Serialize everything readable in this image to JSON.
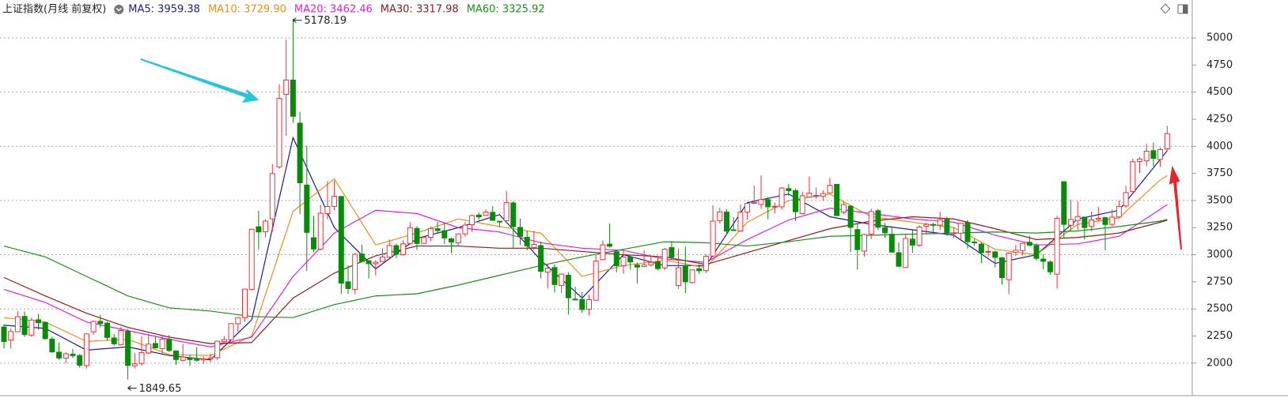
{
  "chart_data": {
    "type": "candlestick",
    "title": "上证指数(月线 前复权)",
    "ylim": [
      1700,
      5350
    ],
    "yticks": [
      2000,
      2250,
      2500,
      2750,
      3000,
      3250,
      3500,
      3750,
      4000,
      4250,
      4500,
      4750,
      5000
    ],
    "grid_every": 2,
    "up_color": "#e8323c",
    "down_color": "#0a8a0a",
    "max_label": "5178.19",
    "min_label": "1849.65",
    "ohlc": [
      [
        2333,
        2359,
        2134,
        2199
      ],
      [
        2212,
        2319,
        2132,
        2292
      ],
      [
        2290,
        2478,
        2287,
        2428
      ],
      [
        2431,
        2476,
        2242,
        2263
      ],
      [
        2259,
        2420,
        2243,
        2397
      ],
      [
        2400,
        2453,
        2308,
        2373
      ],
      [
        2376,
        2379,
        2218,
        2226
      ],
      [
        2222,
        2244,
        2097,
        2103
      ],
      [
        2101,
        2190,
        2031,
        2047
      ],
      [
        2046,
        2102,
        1999,
        2086
      ],
      [
        2082,
        2131,
        2047,
        2069
      ],
      [
        2070,
        2084,
        1959,
        1980
      ],
      [
        1977,
        2276,
        1950,
        2269
      ],
      [
        2289,
        2393,
        2262,
        2385
      ],
      [
        2385,
        2445,
        2330,
        2366
      ],
      [
        2369,
        2380,
        2206,
        2237
      ],
      [
        2232,
        2269,
        2161,
        2178
      ],
      [
        2171,
        2335,
        2166,
        2301
      ],
      [
        2293,
        2316,
        1849.65,
        1979
      ],
      [
        1975,
        2092,
        1951,
        1994
      ],
      [
        1997,
        2248,
        1977,
        2098
      ],
      [
        2094,
        2270,
        2081,
        2175
      ],
      [
        2181,
        2243,
        2137,
        2141
      ],
      [
        2134,
        2258,
        2089,
        2221
      ],
      [
        2220,
        2260,
        2102,
        2116
      ],
      [
        2112,
        2113,
        1985,
        2033
      ],
      [
        2026,
        2177,
        2016,
        2056
      ],
      [
        2050,
        2078,
        1975,
        2033
      ],
      [
        2034,
        2146,
        2015,
        2026
      ],
      [
        2029,
        2062,
        1991,
        2039
      ],
      [
        2038,
        2087,
        2010,
        2048
      ],
      [
        2050,
        2205,
        2030,
        2202
      ],
      [
        2198,
        2249,
        2174,
        2217
      ],
      [
        2217,
        2367,
        2210,
        2364
      ],
      [
        2363,
        2425,
        2290,
        2420
      ],
      [
        2420,
        2685,
        2380,
        2683
      ],
      [
        2680,
        3240,
        2672,
        3235
      ],
      [
        3258,
        3406,
        3049,
        3210
      ],
      [
        3212,
        3329,
        3161,
        3310
      ],
      [
        3331,
        3835,
        3213,
        3748
      ],
      [
        3810,
        4572,
        3793,
        4442
      ],
      [
        4480,
        4985,
        4099,
        4612
      ],
      [
        4611,
        5178.19,
        4217,
        4277
      ],
      [
        4214,
        4318,
        3374,
        3664
      ],
      [
        3643,
        4006,
        2850,
        3206
      ],
      [
        3157,
        3358,
        3022,
        3053
      ],
      [
        3052,
        3462,
        3039,
        3383
      ],
      [
        3380,
        3678,
        3328,
        3445
      ],
      [
        3445,
        3685,
        3410,
        3539
      ],
      [
        3537,
        3539,
        2638,
        2738
      ],
      [
        2750,
        2903,
        2638,
        2688
      ],
      [
        2679,
        3019,
        2638,
        3004
      ],
      [
        3006,
        3093,
        2928,
        2938
      ],
      [
        2945,
        2948,
        2781,
        2917
      ],
      [
        2917,
        2951,
        2808,
        2930
      ],
      [
        2938,
        3060,
        2932,
        2979
      ],
      [
        2977,
        3141,
        2963,
        3085
      ],
      [
        3084,
        3103,
        2969,
        3005
      ],
      [
        3002,
        3134,
        2991,
        3100
      ],
      [
        3104,
        3301,
        3097,
        3250
      ],
      [
        3243,
        3265,
        3044,
        3104
      ],
      [
        3105,
        3174,
        3100,
        3159
      ],
      [
        3160,
        3261,
        3125,
        3242
      ],
      [
        3240,
        3302,
        3196,
        3223
      ],
      [
        3221,
        3295,
        3097,
        3155
      ],
      [
        3146,
        3157,
        3016,
        3117
      ],
      [
        3110,
        3198,
        3081,
        3192
      ],
      [
        3193,
        3301,
        3167,
        3273
      ],
      [
        3277,
        3372,
        3211,
        3361
      ],
      [
        3366,
        3391,
        3321,
        3349
      ],
      [
        3363,
        3417,
        3363,
        3393
      ],
      [
        3391,
        3450,
        3316,
        3317
      ],
      [
        3309,
        3314,
        3254,
        3307
      ],
      [
        3314,
        3587,
        3314,
        3481
      ],
      [
        3478,
        3495,
        3062,
        3259
      ],
      [
        3252,
        3334,
        3091,
        3169
      ],
      [
        3161,
        3220,
        3041,
        3082
      ],
      [
        3066,
        3219,
        3041,
        3095
      ],
      [
        3084,
        3123,
        2782,
        2847
      ],
      [
        2841,
        2916,
        2691,
        2876
      ],
      [
        2882,
        2909,
        2653,
        2725
      ],
      [
        2716,
        2827,
        2644,
        2821
      ],
      [
        2811,
        2838,
        2449,
        2603
      ],
      [
        2590,
        2703,
        2580,
        2588
      ],
      [
        2588,
        2657,
        2463,
        2494
      ],
      [
        2497,
        2630,
        2440,
        2585
      ],
      [
        2580,
        2997,
        2579,
        2941
      ],
      [
        2955,
        3130,
        2954,
        3091
      ],
      [
        3098,
        3288,
        3065,
        3078
      ],
      [
        3028,
        3040,
        2838,
        2899
      ],
      [
        2899,
        3044,
        2825,
        2979
      ],
      [
        2978,
        2986,
        2862,
        2933
      ],
      [
        2905,
        2926,
        2733,
        2886
      ],
      [
        2890,
        3042,
        2885,
        2905
      ],
      [
        2905,
        2996,
        2891,
        2929
      ],
      [
        2935,
        2969,
        2857,
        2872
      ],
      [
        2879,
        3063,
        2858,
        3050
      ],
      [
        3066,
        3127,
        2956,
        2977
      ],
      [
        2716,
        3058,
        2685,
        2880
      ],
      [
        2899,
        3074,
        2647,
        2750
      ],
      [
        2743,
        2863,
        2732,
        2860
      ],
      [
        2870,
        2910,
        2821,
        2852
      ],
      [
        2853,
        3002,
        2833,
        2985
      ],
      [
        2988,
        3458,
        2978,
        3310
      ],
      [
        3313,
        3434,
        3287,
        3396
      ],
      [
        3393,
        3419,
        3202,
        3218
      ],
      [
        3230,
        3347,
        3220,
        3225
      ],
      [
        3219,
        3465,
        3216,
        3392
      ],
      [
        3392,
        3474,
        3325,
        3473
      ],
      [
        3474,
        3637,
        3469,
        3483
      ],
      [
        3464,
        3732,
        3423,
        3509
      ],
      [
        3508,
        3532,
        3328,
        3442
      ],
      [
        3444,
        3481,
        3381,
        3447
      ],
      [
        3442,
        3626,
        3416,
        3615
      ],
      [
        3610,
        3654,
        3544,
        3591
      ],
      [
        3592,
        3611,
        3313,
        3397
      ],
      [
        3380,
        3581,
        3372,
        3544
      ],
      [
        3532,
        3723,
        3534,
        3568
      ],
      [
        3541,
        3620,
        3515,
        3547
      ],
      [
        3541,
        3595,
        3499,
        3564
      ],
      [
        3570,
        3708,
        3582,
        3640
      ],
      [
        3649,
        3652,
        3357,
        3361
      ],
      [
        3394,
        3490,
        3374,
        3462
      ],
      [
        3448,
        3460,
        3023,
        3252
      ],
      [
        3232,
        3281,
        2863,
        3047
      ],
      [
        3034,
        3195,
        2985,
        3186
      ],
      [
        3191,
        3425,
        3143,
        3399
      ],
      [
        3406,
        3422,
        3226,
        3253
      ],
      [
        3250,
        3294,
        3155,
        3202
      ],
      [
        3189,
        3264,
        3021,
        3024
      ],
      [
        3019,
        3114,
        2885,
        2893
      ],
      [
        2882,
        3183,
        2886,
        3151
      ],
      [
        3144,
        3226,
        3017,
        3089
      ],
      [
        3087,
        3270,
        3073,
        3255
      ],
      [
        3262,
        3294,
        3196,
        3280
      ],
      [
        3279,
        3294,
        3190,
        3273
      ],
      [
        3273,
        3395,
        3229,
        3323
      ],
      [
        3324,
        3350,
        3175,
        3205
      ],
      [
        3201,
        3256,
        3153,
        3202
      ],
      [
        3199,
        3292,
        3134,
        3291
      ],
      [
        3296,
        3322,
        3053,
        3120
      ],
      [
        3118,
        3151,
        3083,
        3110
      ],
      [
        3098,
        3114,
        2923,
        3018
      ],
      [
        3023,
        3090,
        2980,
        3030
      ],
      [
        3026,
        3037,
        2882,
        2975
      ],
      [
        2972,
        2979,
        2724,
        2789
      ],
      [
        2770,
        3021,
        2635,
        3015
      ],
      [
        3021,
        3090,
        2990,
        3041
      ],
      [
        3039,
        3112,
        2995,
        3105
      ],
      [
        3115,
        3174,
        3079,
        3087
      ],
      [
        3084,
        3106,
        2946,
        2967
      ],
      [
        2960,
        3003,
        2866,
        2939
      ],
      [
        2933,
        2947,
        2815,
        2842
      ],
      [
        2821,
        3358,
        2689,
        3336
      ],
      [
        3674,
        3674,
        3152,
        3280
      ],
      [
        3272,
        3509,
        3213,
        3326
      ],
      [
        3316,
        3494,
        3228,
        3352
      ],
      [
        3347,
        3351,
        3140,
        3251
      ],
      [
        3261,
        3396,
        3216,
        3321
      ],
      [
        3325,
        3440,
        3311,
        3336
      ],
      [
        3342,
        3350,
        3041,
        3279
      ],
      [
        3280,
        3418,
        3262,
        3347
      ],
      [
        3348,
        3499,
        3336,
        3444
      ],
      [
        3450,
        3636,
        3432,
        3573
      ],
      [
        3584,
        3884,
        3578,
        3858
      ],
      [
        3861,
        3900,
        3754,
        3883
      ],
      [
        3866,
        4025,
        3815,
        3955
      ],
      [
        3960,
        4034,
        3815,
        3889
      ],
      [
        3880,
        3990,
        3810,
        3969
      ],
      [
        3976,
        4190,
        3960,
        4117
      ]
    ],
    "ma_x": [
      0,
      6,
      12,
      18,
      24,
      30,
      36,
      42,
      48,
      54,
      60,
      66,
      72,
      78,
      84,
      90,
      96,
      102,
      108,
      114,
      120,
      126,
      132,
      138,
      144,
      150,
      156,
      162,
      168,
      169
    ],
    "ma_series": [
      {
        "label": "MA5: 3959.38",
        "color": "#1c1c8c",
        "values": [
          2350,
          2320,
          2120,
          2150,
          2070,
          2030,
          2400,
          4080,
          3250,
          2870,
          3150,
          3250,
          3370,
          2950,
          2600,
          3000,
          2900,
          2900,
          3480,
          3560,
          3350,
          3280,
          3230,
          3180,
          2920,
          3000,
          3330,
          3410,
          3880,
          3959.38
        ]
      },
      {
        "label": "MA10: 3729.90",
        "color": "#e8901e",
        "values": [
          2420,
          2380,
          2200,
          2220,
          2080,
          2070,
          2250,
          3400,
          3700,
          3090,
          3200,
          3330,
          3260,
          3200,
          2800,
          2900,
          2950,
          2880,
          3300,
          3500,
          3560,
          3350,
          3300,
          3250,
          3050,
          3000,
          3280,
          3340,
          3690,
          3729.9
        ]
      },
      {
        "label": "MA20: 3462.46",
        "color": "#e020e0",
        "values": [
          2680,
          2560,
          2380,
          2300,
          2220,
          2150,
          2240,
          2800,
          3200,
          3410,
          3380,
          3250,
          3210,
          3110,
          3060,
          3040,
          2960,
          2930,
          3140,
          3320,
          3430,
          3380,
          3330,
          3300,
          3180,
          3090,
          3100,
          3170,
          3420,
          3462.46
        ]
      },
      {
        "label": "MA30: 3317.98",
        "color": "#8b1c1c",
        "values": [
          2790,
          2620,
          2460,
          2330,
          2240,
          2180,
          2190,
          2600,
          2830,
          2990,
          3080,
          3080,
          3060,
          3060,
          3030,
          3000,
          2980,
          2910,
          3020,
          3130,
          3240,
          3310,
          3350,
          3330,
          3240,
          3140,
          3160,
          3200,
          3300,
          3317.98
        ]
      },
      {
        "label": "MA60: 3325.92",
        "color": "#1c8c1c",
        "values": [
          3080,
          2980,
          2800,
          2620,
          2510,
          2480,
          2430,
          2420,
          2540,
          2620,
          2640,
          2720,
          2810,
          2900,
          2980,
          3050,
          3120,
          3110,
          3080,
          3120,
          3170,
          3180,
          3190,
          3200,
          3210,
          3200,
          3220,
          3260,
          3310,
          3325.92
        ]
      }
    ]
  }
}
